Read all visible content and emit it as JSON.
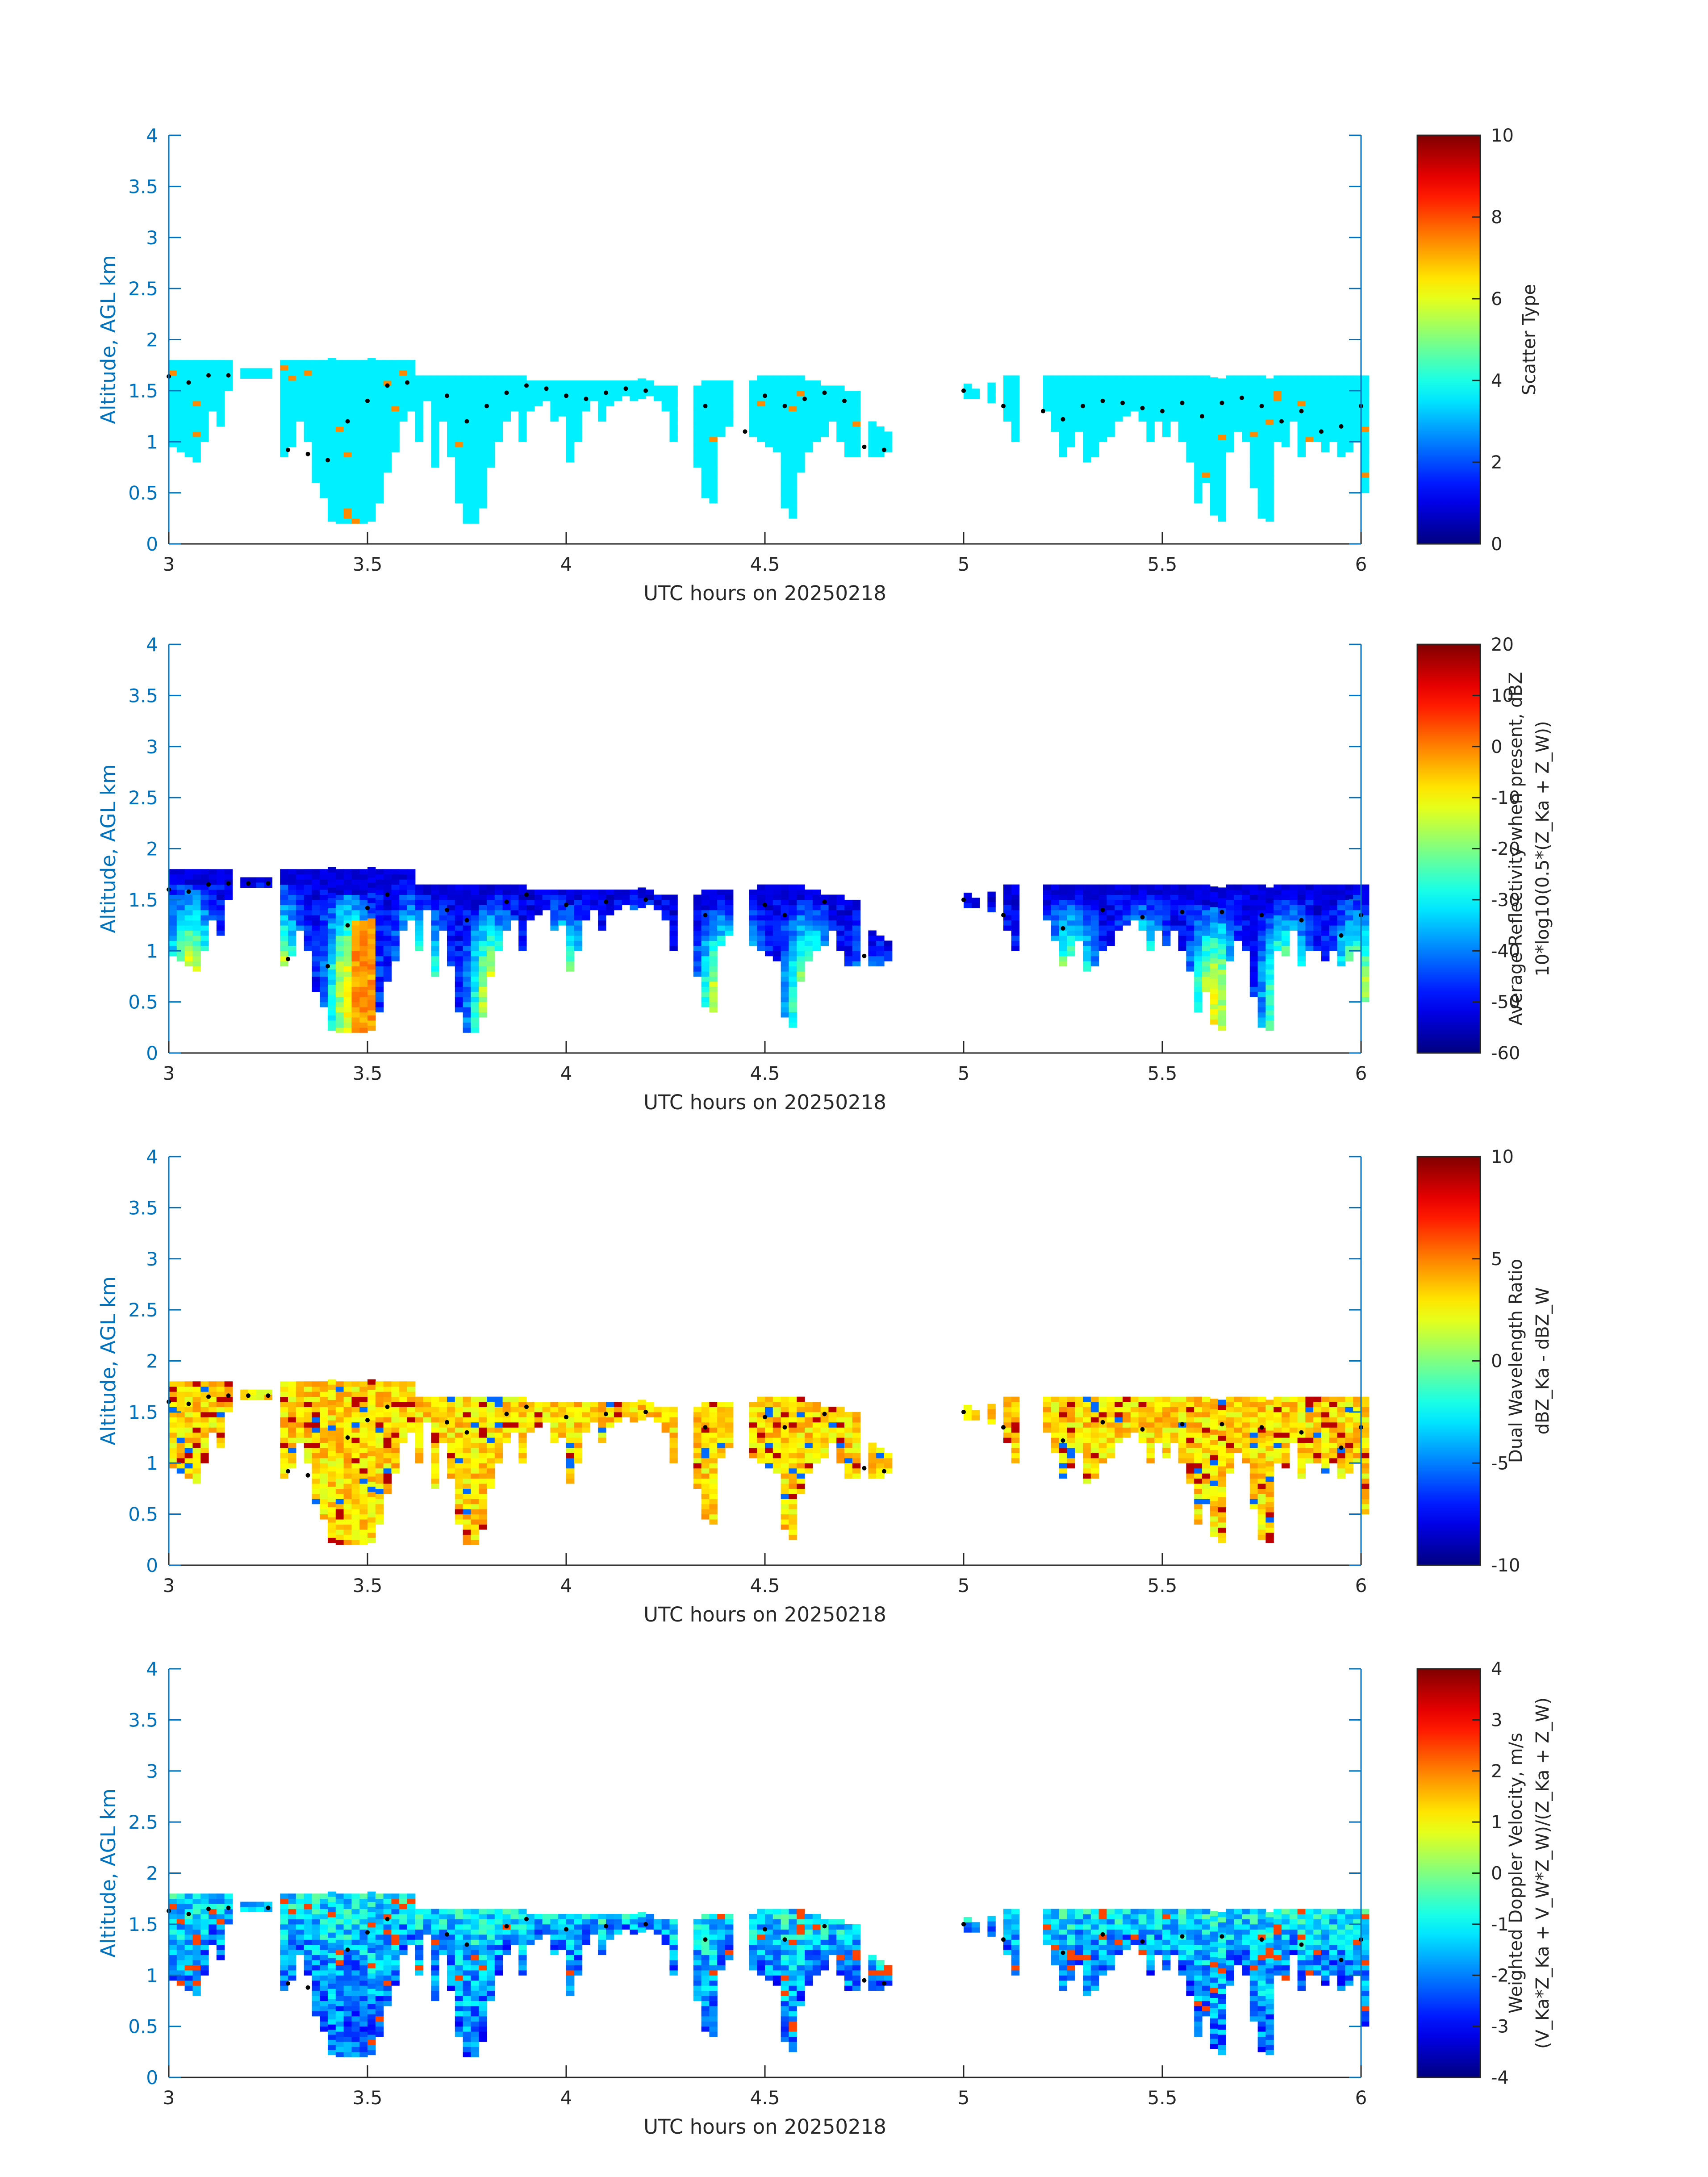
{
  "figure": {
    "xlabel": "UTC hours on 20250218",
    "ylabel": "Altitude, AGL km",
    "xticks": [
      "3",
      "3.5",
      "4",
      "4.5",
      "5",
      "5.5",
      "6"
    ],
    "yticks": [
      "0",
      "0.5",
      "1",
      "1.5",
      "2",
      "2.5",
      "3",
      "3.5",
      "4"
    ],
    "axis_color": "#0072BD",
    "colormap": "jet"
  },
  "chart_data": [
    {
      "type": "heatmap",
      "xlabel": "UTC hours on 20250218",
      "ylabel": "Altitude, AGL km",
      "xlim": [
        3,
        6
      ],
      "ylim": [
        0,
        4
      ],
      "colorbar": {
        "label": [
          "Scatter Type"
        ],
        "range": [
          0,
          10
        ],
        "ticks": [
          "0",
          "2",
          "4",
          "6",
          "8",
          "10"
        ]
      },
      "field": "scatter",
      "cloud_base_points": [
        [
          3.0,
          1.64
        ],
        [
          3.05,
          1.58
        ],
        [
          3.1,
          1.65
        ],
        [
          3.15,
          1.65
        ],
        [
          3.3,
          0.92
        ],
        [
          3.35,
          0.88
        ],
        [
          3.4,
          0.82
        ],
        [
          3.45,
          1.2
        ],
        [
          3.5,
          1.4
        ],
        [
          3.55,
          1.55
        ],
        [
          3.6,
          1.58
        ],
        [
          3.7,
          1.45
        ],
        [
          3.75,
          1.2
        ],
        [
          3.8,
          1.35
        ],
        [
          3.85,
          1.48
        ],
        [
          3.9,
          1.55
        ],
        [
          3.95,
          1.52
        ],
        [
          4.0,
          1.45
        ],
        [
          4.05,
          1.42
        ],
        [
          4.1,
          1.48
        ],
        [
          4.15,
          1.52
        ],
        [
          4.2,
          1.5
        ],
        [
          4.35,
          1.35
        ],
        [
          4.45,
          1.1
        ],
        [
          4.5,
          1.45
        ],
        [
          4.55,
          1.35
        ],
        [
          4.6,
          1.42
        ],
        [
          4.65,
          1.48
        ],
        [
          4.7,
          1.4
        ],
        [
          4.75,
          0.95
        ],
        [
          4.8,
          0.92
        ],
        [
          5.0,
          1.5
        ],
        [
          5.1,
          1.35
        ],
        [
          5.2,
          1.3
        ],
        [
          5.25,
          1.22
        ],
        [
          5.3,
          1.35
        ],
        [
          5.35,
          1.4
        ],
        [
          5.4,
          1.38
        ],
        [
          5.45,
          1.33
        ],
        [
          5.5,
          1.3
        ],
        [
          5.55,
          1.38
        ],
        [
          5.6,
          1.25
        ],
        [
          5.65,
          1.38
        ],
        [
          5.7,
          1.43
        ],
        [
          5.75,
          1.35
        ],
        [
          5.8,
          1.2
        ],
        [
          5.85,
          1.3
        ],
        [
          5.9,
          1.1
        ],
        [
          5.95,
          1.15
        ],
        [
          6.0,
          1.35
        ]
      ]
    },
    {
      "type": "heatmap",
      "xlabel": "UTC hours on 20250218",
      "ylabel": "Altitude, AGL km",
      "xlim": [
        3,
        6
      ],
      "ylim": [
        0,
        4
      ],
      "colorbar": {
        "label": [
          "Average Reflectivity when present, dBZ",
          "10*log10(0.5*(Z_Ka + Z_W))"
        ],
        "range": [
          -60,
          20
        ],
        "ticks": [
          "-60",
          "-50",
          "-40",
          "-30",
          "-20",
          "-10",
          "0",
          "10",
          "20"
        ]
      },
      "field": "reflectivity",
      "cloud_base_points": [
        [
          3.0,
          1.6
        ],
        [
          3.05,
          1.58
        ],
        [
          3.1,
          1.65
        ],
        [
          3.15,
          1.66
        ],
        [
          3.2,
          1.66
        ],
        [
          3.25,
          1.66
        ],
        [
          3.3,
          0.92
        ],
        [
          3.4,
          0.85
        ],
        [
          3.45,
          1.25
        ],
        [
          3.5,
          1.42
        ],
        [
          3.55,
          1.55
        ],
        [
          3.7,
          1.4
        ],
        [
          3.75,
          1.3
        ],
        [
          3.85,
          1.48
        ],
        [
          3.9,
          1.55
        ],
        [
          4.0,
          1.45
        ],
        [
          4.1,
          1.48
        ],
        [
          4.2,
          1.5
        ],
        [
          4.35,
          1.35
        ],
        [
          4.5,
          1.45
        ],
        [
          4.55,
          1.35
        ],
        [
          4.65,
          1.48
        ],
        [
          4.75,
          0.95
        ],
        [
          5.0,
          1.5
        ],
        [
          5.1,
          1.35
        ],
        [
          5.25,
          1.22
        ],
        [
          5.35,
          1.4
        ],
        [
          5.45,
          1.33
        ],
        [
          5.55,
          1.38
        ],
        [
          5.65,
          1.38
        ],
        [
          5.75,
          1.35
        ],
        [
          5.85,
          1.3
        ],
        [
          5.95,
          1.15
        ],
        [
          6.0,
          1.35
        ]
      ]
    },
    {
      "type": "heatmap",
      "xlabel": "UTC hours on 20250218",
      "ylabel": "Altitude, AGL km",
      "xlim": [
        3,
        6
      ],
      "ylim": [
        0,
        4
      ],
      "colorbar": {
        "label": [
          "Dual Wavelength Ratio",
          "dBZ_Ka - dBZ_W"
        ],
        "range": [
          -10,
          10
        ],
        "ticks": [
          "-10",
          "-5",
          "0",
          "5",
          "10"
        ]
      },
      "field": "dwr",
      "cloud_base_points": [
        [
          3.0,
          1.6
        ],
        [
          3.05,
          1.58
        ],
        [
          3.1,
          1.65
        ],
        [
          3.15,
          1.66
        ],
        [
          3.2,
          1.66
        ],
        [
          3.25,
          1.66
        ],
        [
          3.3,
          0.92
        ],
        [
          3.35,
          0.88
        ],
        [
          3.45,
          1.25
        ],
        [
          3.5,
          1.42
        ],
        [
          3.55,
          1.55
        ],
        [
          3.7,
          1.4
        ],
        [
          3.75,
          1.3
        ],
        [
          3.85,
          1.48
        ],
        [
          3.9,
          1.55
        ],
        [
          4.0,
          1.45
        ],
        [
          4.1,
          1.48
        ],
        [
          4.2,
          1.5
        ],
        [
          4.35,
          1.35
        ],
        [
          4.5,
          1.45
        ],
        [
          4.55,
          1.35
        ],
        [
          4.65,
          1.48
        ],
        [
          4.75,
          0.95
        ],
        [
          4.8,
          0.92
        ],
        [
          5.0,
          1.5
        ],
        [
          5.1,
          1.35
        ],
        [
          5.25,
          1.22
        ],
        [
          5.35,
          1.4
        ],
        [
          5.45,
          1.33
        ],
        [
          5.55,
          1.38
        ],
        [
          5.65,
          1.38
        ],
        [
          5.75,
          1.35
        ],
        [
          5.85,
          1.3
        ],
        [
          5.95,
          1.15
        ],
        [
          6.0,
          1.35
        ]
      ]
    },
    {
      "type": "heatmap",
      "xlabel": "UTC hours on 20250218",
      "ylabel": "Altitude, AGL km",
      "xlim": [
        3,
        6
      ],
      "ylim": [
        0,
        4
      ],
      "colorbar": {
        "label": [
          "Weighted Doppler Velocity, m/s",
          "(V_Ka*Z_Ka + V_W*Z_W)/(Z_Ka + Z_W)"
        ],
        "range": [
          -4,
          4
        ],
        "ticks": [
          "-4",
          "-3",
          "-2",
          "-1",
          "0",
          "1",
          "2",
          "3",
          "4"
        ]
      },
      "field": "doppler",
      "cloud_base_points": [
        [
          3.0,
          1.63
        ],
        [
          3.05,
          1.6
        ],
        [
          3.1,
          1.65
        ],
        [
          3.15,
          1.66
        ],
        [
          3.25,
          1.66
        ],
        [
          3.3,
          0.92
        ],
        [
          3.35,
          0.88
        ],
        [
          3.45,
          1.25
        ],
        [
          3.5,
          1.42
        ],
        [
          3.55,
          1.55
        ],
        [
          3.7,
          1.4
        ],
        [
          3.75,
          1.3
        ],
        [
          3.85,
          1.48
        ],
        [
          3.9,
          1.55
        ],
        [
          4.0,
          1.45
        ],
        [
          4.1,
          1.48
        ],
        [
          4.2,
          1.5
        ],
        [
          4.35,
          1.35
        ],
        [
          4.5,
          1.45
        ],
        [
          4.55,
          1.35
        ],
        [
          4.65,
          1.48
        ],
        [
          4.75,
          0.95
        ],
        [
          4.8,
          0.92
        ],
        [
          5.0,
          1.5
        ],
        [
          5.1,
          1.35
        ],
        [
          5.25,
          1.22
        ],
        [
          5.35,
          1.4
        ],
        [
          5.45,
          1.33
        ],
        [
          5.55,
          1.38
        ],
        [
          5.65,
          1.38
        ],
        [
          5.75,
          1.35
        ],
        [
          5.85,
          1.3
        ],
        [
          5.95,
          1.15
        ],
        [
          6.0,
          1.35
        ]
      ]
    }
  ],
  "echo_profile": {
    "note_units": "time in UTC hours, heights in km",
    "columns": [
      [
        3.0,
        1.8,
        0.95
      ],
      [
        3.02,
        1.8,
        0.9
      ],
      [
        3.04,
        1.78,
        0.85
      ],
      [
        3.06,
        1.78,
        0.8
      ],
      [
        3.08,
        1.78,
        1.0
      ],
      [
        3.1,
        1.78,
        1.3
      ],
      [
        3.12,
        1.78,
        1.15
      ],
      [
        3.14,
        1.78,
        1.5
      ],
      [
        3.18,
        1.7,
        1.62
      ],
      [
        3.2,
        1.7,
        1.62
      ],
      [
        3.22,
        1.7,
        1.62
      ],
      [
        3.24,
        1.7,
        1.62
      ],
      [
        3.28,
        1.78,
        0.85
      ],
      [
        3.3,
        1.78,
        0.95
      ],
      [
        3.32,
        1.78,
        1.2
      ],
      [
        3.34,
        1.78,
        1.0
      ],
      [
        3.36,
        1.78,
        0.6
      ],
      [
        3.38,
        1.78,
        0.45
      ],
      [
        3.4,
        1.78,
        0.22
      ],
      [
        3.42,
        1.78,
        0.2
      ],
      [
        3.44,
        1.78,
        0.2
      ],
      [
        3.46,
        1.78,
        0.2
      ],
      [
        3.48,
        1.78,
        0.2
      ],
      [
        3.5,
        1.78,
        0.22
      ],
      [
        3.52,
        1.78,
        0.4
      ],
      [
        3.54,
        1.78,
        0.7
      ],
      [
        3.56,
        1.78,
        0.9
      ],
      [
        3.58,
        1.78,
        1.2
      ],
      [
        3.6,
        1.78,
        1.3
      ],
      [
        3.62,
        1.62,
        1.0
      ],
      [
        3.64,
        1.62,
        1.4
      ],
      [
        3.66,
        1.62,
        0.75
      ],
      [
        3.68,
        1.62,
        1.2
      ],
      [
        3.7,
        1.62,
        0.85
      ],
      [
        3.72,
        1.62,
        0.4
      ],
      [
        3.74,
        1.62,
        0.2
      ],
      [
        3.76,
        1.62,
        0.2
      ],
      [
        3.78,
        1.62,
        0.35
      ],
      [
        3.8,
        1.62,
        0.75
      ],
      [
        3.82,
        1.62,
        1.0
      ],
      [
        3.84,
        1.62,
        1.2
      ],
      [
        3.86,
        1.62,
        1.3
      ],
      [
        3.88,
        1.62,
        1.0
      ],
      [
        3.9,
        1.6,
        1.3
      ],
      [
        3.92,
        1.6,
        1.35
      ],
      [
        3.94,
        1.6,
        1.4
      ],
      [
        3.96,
        1.6,
        1.2
      ],
      [
        3.98,
        1.6,
        1.25
      ],
      [
        4.0,
        1.58,
        0.8
      ],
      [
        4.02,
        1.58,
        1.0
      ],
      [
        4.04,
        1.58,
        1.3
      ],
      [
        4.06,
        1.58,
        1.4
      ],
      [
        4.08,
        1.58,
        1.2
      ],
      [
        4.1,
        1.58,
        1.35
      ],
      [
        4.12,
        1.58,
        1.4
      ],
      [
        4.14,
        1.58,
        1.45
      ],
      [
        4.16,
        1.58,
        1.4
      ],
      [
        4.18,
        1.58,
        1.42
      ],
      [
        4.2,
        1.58,
        1.45
      ],
      [
        4.22,
        1.55,
        1.4
      ],
      [
        4.24,
        1.55,
        1.3
      ],
      [
        4.26,
        1.55,
        1.0
      ],
      [
        4.32,
        1.55,
        0.75
      ],
      [
        4.34,
        1.58,
        0.45
      ],
      [
        4.36,
        1.58,
        0.4
      ],
      [
        4.38,
        1.58,
        1.05
      ],
      [
        4.4,
        1.58,
        1.15
      ],
      [
        4.46,
        1.6,
        1.05
      ],
      [
        4.48,
        1.62,
        1.0
      ],
      [
        4.5,
        1.65,
        0.95
      ],
      [
        4.52,
        1.65,
        0.9
      ],
      [
        4.54,
        1.65,
        0.35
      ],
      [
        4.56,
        1.65,
        0.25
      ],
      [
        4.58,
        1.62,
        0.7
      ],
      [
        4.6,
        1.58,
        0.9
      ],
      [
        4.62,
        1.58,
        1.0
      ],
      [
        4.64,
        1.55,
        1.05
      ],
      [
        4.66,
        1.55,
        1.2
      ],
      [
        4.68,
        1.52,
        1.0
      ],
      [
        4.7,
        1.5,
        0.85
      ],
      [
        4.72,
        1.5,
        0.85
      ],
      [
        4.76,
        1.2,
        0.85
      ],
      [
        4.78,
        1.15,
        0.85
      ],
      [
        4.8,
        1.1,
        0.9
      ],
      [
        5.0,
        1.55,
        1.42
      ],
      [
        5.02,
        1.52,
        1.42
      ],
      [
        5.06,
        1.55,
        1.38
      ],
      [
        5.1,
        1.62,
        1.2
      ],
      [
        5.12,
        1.62,
        1.0
      ],
      [
        5.2,
        1.62,
        1.3
      ],
      [
        5.22,
        1.62,
        1.1
      ],
      [
        5.24,
        1.62,
        0.85
      ],
      [
        5.26,
        1.62,
        0.95
      ],
      [
        5.28,
        1.62,
        1.1
      ],
      [
        5.3,
        1.62,
        0.8
      ],
      [
        5.32,
        1.62,
        0.85
      ],
      [
        5.34,
        1.62,
        1.0
      ],
      [
        5.36,
        1.62,
        1.05
      ],
      [
        5.38,
        1.62,
        1.2
      ],
      [
        5.4,
        1.62,
        1.25
      ],
      [
        5.42,
        1.62,
        1.3
      ],
      [
        5.44,
        1.62,
        1.2
      ],
      [
        5.46,
        1.62,
        1.0
      ],
      [
        5.48,
        1.62,
        1.2
      ],
      [
        5.5,
        1.62,
        1.05
      ],
      [
        5.52,
        1.62,
        1.2
      ],
      [
        5.54,
        1.62,
        1.0
      ],
      [
        5.56,
        1.62,
        0.8
      ],
      [
        5.58,
        1.62,
        0.4
      ],
      [
        5.6,
        1.62,
        0.6
      ],
      [
        5.62,
        1.62,
        0.28
      ],
      [
        5.64,
        1.62,
        0.22
      ],
      [
        5.66,
        1.62,
        0.9
      ],
      [
        5.68,
        1.62,
        1.1
      ],
      [
        5.7,
        1.62,
        1.0
      ],
      [
        5.72,
        1.62,
        0.55
      ],
      [
        5.74,
        1.62,
        0.25
      ],
      [
        5.76,
        1.62,
        0.22
      ],
      [
        5.78,
        1.62,
        1.0
      ],
      [
        5.8,
        1.62,
        0.95
      ],
      [
        5.82,
        1.62,
        1.2
      ],
      [
        5.84,
        1.62,
        0.85
      ],
      [
        5.86,
        1.62,
        1.0
      ],
      [
        5.88,
        1.62,
        1.0
      ],
      [
        5.9,
        1.62,
        0.9
      ],
      [
        5.92,
        1.62,
        1.0
      ],
      [
        5.94,
        1.62,
        0.85
      ],
      [
        5.96,
        1.62,
        0.9
      ],
      [
        5.98,
        1.62,
        1.0
      ],
      [
        6.0,
        1.62,
        0.5
      ]
    ]
  }
}
